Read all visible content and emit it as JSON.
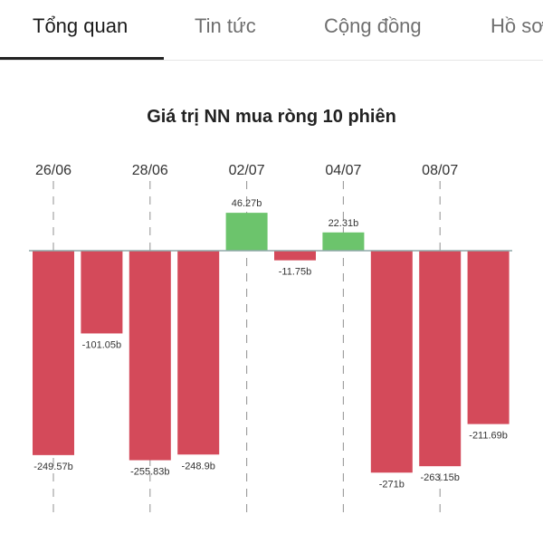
{
  "tabs": [
    {
      "label": "Tổng quan",
      "active": true
    },
    {
      "label": "Tin tức",
      "active": false
    },
    {
      "label": "Cộng đồng",
      "active": false
    },
    {
      "label": "Hồ sơ",
      "active": false
    }
  ],
  "chart_data": {
    "type": "bar",
    "title": "Giá trị NN mua ròng 10 phiên",
    "xlabel": "",
    "ylabel": "",
    "x_tick_labels": [
      "26/06",
      "28/06",
      "02/07",
      "04/07",
      "08/07"
    ],
    "x_tick_bar_index": [
      0,
      2,
      4,
      6,
      8
    ],
    "values": [
      -249.57,
      -101.05,
      -255.83,
      -248.9,
      46.27,
      -11.75,
      22.31,
      -271,
      -263.15,
      -211.69
    ],
    "value_labels": [
      "-249.57b",
      "-101.05b",
      "-255.83b",
      "-248.9b",
      "46.27b",
      "-11.75b",
      "22.31b",
      "-271b",
      "-263.15b",
      "-211.69b"
    ],
    "ylim": [
      -300,
      60
    ],
    "grid": "vertical dashed at tick positions",
    "colors": {
      "positive": "#6cc46c",
      "negative": "#d44a5a",
      "baseline": "#8fa8a8"
    }
  }
}
